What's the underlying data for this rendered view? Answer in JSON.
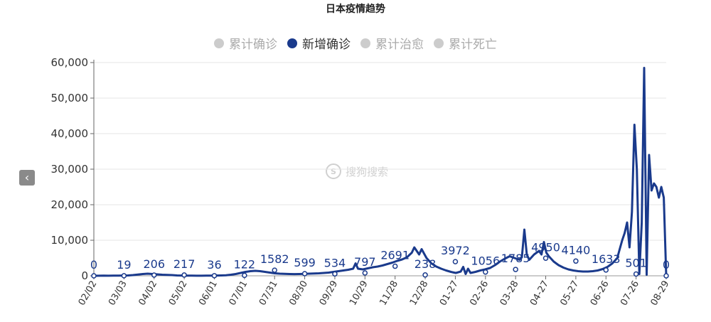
{
  "chart_data": {
    "type": "line",
    "title": "日本疫情趋势",
    "legend": [
      "累计确诊",
      "新增确诊",
      "累计治愈",
      "累计死亡"
    ],
    "active_series": "新增确诊",
    "x_ticks": [
      "02/02",
      "03/03",
      "04/02",
      "05/02",
      "06/01",
      "07/01",
      "07/31",
      "08/30",
      "09/29",
      "10/29",
      "11/28",
      "12/28",
      "01-27",
      "02-26",
      "03-28",
      "04-27",
      "05-27",
      "06-26",
      "07-26",
      "08-29"
    ],
    "ylim": [
      0,
      60000
    ],
    "y_ticks": [
      "0",
      "10,000",
      "20,000",
      "30,000",
      "40,000",
      "50,000",
      "60,000"
    ],
    "labels": [
      "0",
      "19",
      "206",
      "217",
      "36",
      "122",
      "1582",
      "599",
      "534",
      "797",
      "2691",
      "238",
      "3972",
      "1056",
      "1785",
      "4950",
      "4140",
      "1633",
      "501",
      "0"
    ],
    "points": [
      [
        0,
        0
      ],
      [
        2,
        30
      ],
      [
        4,
        40
      ],
      [
        6,
        30
      ],
      [
        8,
        50
      ],
      [
        10,
        60
      ],
      [
        12,
        80
      ],
      [
        14,
        100
      ],
      [
        16,
        200
      ],
      [
        18,
        350
      ],
      [
        20,
        500
      ],
      [
        22,
        600
      ],
      [
        24,
        500
      ],
      [
        26,
        400
      ],
      [
        28,
        300
      ],
      [
        30,
        250
      ],
      [
        32,
        200
      ],
      [
        34,
        100
      ],
      [
        36,
        80
      ],
      [
        38,
        50
      ],
      [
        40,
        40
      ],
      [
        42,
        30
      ],
      [
        44,
        30
      ],
      [
        46,
        35
      ],
      [
        48,
        50
      ],
      [
        50,
        70
      ],
      [
        52,
        100
      ],
      [
        54,
        150
      ],
      [
        56,
        300
      ],
      [
        58,
        500
      ],
      [
        60,
        800
      ],
      [
        62,
        1100
      ],
      [
        64,
        1300
      ],
      [
        66,
        1400
      ],
      [
        68,
        1300
      ],
      [
        70,
        1100
      ],
      [
        72,
        900
      ],
      [
        74,
        700
      ],
      [
        76,
        600
      ],
      [
        78,
        550
      ],
      [
        80,
        500
      ],
      [
        82,
        480
      ],
      [
        84,
        500
      ],
      [
        86,
        550
      ],
      [
        88,
        600
      ],
      [
        90,
        650
      ],
      [
        92,
        700
      ],
      [
        94,
        800
      ],
      [
        96,
        900
      ],
      [
        98,
        1100
      ],
      [
        100,
        1300
      ],
      [
        102,
        1500
      ],
      [
        104,
        1700
      ],
      [
        106,
        2000
      ],
      [
        107,
        3500
      ],
      [
        108,
        2000
      ],
      [
        110,
        1800
      ],
      [
        112,
        2100
      ],
      [
        114,
        2400
      ],
      [
        116,
        2600
      ],
      [
        118,
        2900
      ],
      [
        120,
        3300
      ],
      [
        122,
        3700
      ],
      [
        124,
        4200
      ],
      [
        126,
        4600
      ],
      [
        128,
        5200
      ],
      [
        130,
        6500
      ],
      [
        131,
        8000
      ],
      [
        132,
        7000
      ],
      [
        133,
        6000
      ],
      [
        134,
        7500
      ],
      [
        136,
        5000
      ],
      [
        138,
        3500
      ],
      [
        140,
        2600
      ],
      [
        142,
        2000
      ],
      [
        144,
        1500
      ],
      [
        146,
        1100
      ],
      [
        148,
        800
      ],
      [
        150,
        1200
      ],
      [
        151,
        2500
      ],
      [
        152,
        500
      ],
      [
        153,
        2000
      ],
      [
        154,
        800
      ],
      [
        156,
        1100
      ],
      [
        158,
        1500
      ],
      [
        160,
        1800
      ],
      [
        162,
        2200
      ],
      [
        164,
        3000
      ],
      [
        166,
        4000
      ],
      [
        168,
        4800
      ],
      [
        170,
        5500
      ],
      [
        172,
        5000
      ],
      [
        174,
        4500
      ],
      [
        175,
        5200
      ],
      [
        176,
        13000
      ],
      [
        177,
        6000
      ],
      [
        178,
        4500
      ],
      [
        180,
        6000
      ],
      [
        182,
        7000
      ],
      [
        183,
        6000
      ],
      [
        184,
        9500
      ],
      [
        185,
        6500
      ],
      [
        186,
        5500
      ],
      [
        188,
        4000
      ],
      [
        190,
        3000
      ],
      [
        192,
        2300
      ],
      [
        194,
        1800
      ],
      [
        196,
        1500
      ],
      [
        198,
        1300
      ],
      [
        200,
        1200
      ],
      [
        202,
        1200
      ],
      [
        204,
        1300
      ],
      [
        206,
        1500
      ],
      [
        208,
        1900
      ],
      [
        210,
        2500
      ],
      [
        212,
        3500
      ],
      [
        214,
        5000
      ],
      [
        215,
        7500
      ],
      [
        216,
        10000
      ],
      [
        217,
        12000
      ],
      [
        218,
        15000
      ],
      [
        219,
        8000
      ],
      [
        220,
        18000
      ],
      [
        221,
        42500
      ],
      [
        222,
        30000
      ],
      [
        223,
        500
      ],
      [
        224,
        15000
      ],
      [
        225,
        58500
      ],
      [
        226,
        300
      ],
      [
        227,
        34000
      ],
      [
        228,
        24000
      ],
      [
        229,
        26000
      ],
      [
        230,
        25000
      ],
      [
        231,
        22000
      ],
      [
        232,
        25000
      ],
      [
        233,
        22000
      ],
      [
        234,
        0
      ]
    ]
  }
}
